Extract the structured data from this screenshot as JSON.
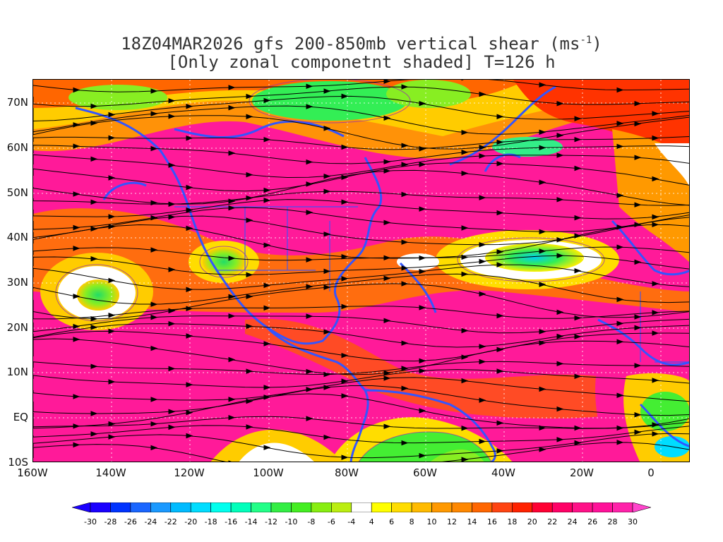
{
  "title": {
    "line1": "18Z04MAR2026 gfs 200-850mb vertical shear (ms",
    "line1_sup": "-1",
    "line1_end": ")",
    "line2": "[Only zonal componetnt shaded] T=126 h"
  },
  "map": {
    "lat_labels": [
      "70N",
      "60N",
      "50N",
      "40N",
      "30N",
      "20N",
      "10N",
      "EQ",
      "10S"
    ],
    "lon_labels": [
      "160W",
      "140W",
      "120W",
      "100W",
      "80W",
      "60W",
      "40W",
      "20W",
      "0"
    ]
  },
  "colorbar": {
    "labels": [
      "-30",
      "-28",
      "-26",
      "-24",
      "-22",
      "-20",
      "-18",
      "-16",
      "-14",
      "-12",
      "-10",
      "-8",
      "-6",
      "-4",
      "4",
      "6",
      "8",
      "10",
      "12",
      "14",
      "16",
      "18",
      "20",
      "22",
      "24",
      "26",
      "28",
      "30"
    ],
    "colors": [
      "#1a00ff",
      "#0033ff",
      "#1a66ff",
      "#1a99ff",
      "#00bbff",
      "#00ddff",
      "#00ffee",
      "#00ffbb",
      "#22ff88",
      "#33ee44",
      "#44ee22",
      "#88ee11",
      "#bbee11",
      "#ffffff",
      "#ffff00",
      "#ffdd00",
      "#ffbb00",
      "#ff9900",
      "#ff8800",
      "#ff6600",
      "#ff4411",
      "#ff2200",
      "#ff0033",
      "#ff0066",
      "#ff1188",
      "#ff1199",
      "#ff22aa"
    ],
    "left_arrow_color": "#1a00ff",
    "right_arrow_color": "#ff44cc"
  }
}
